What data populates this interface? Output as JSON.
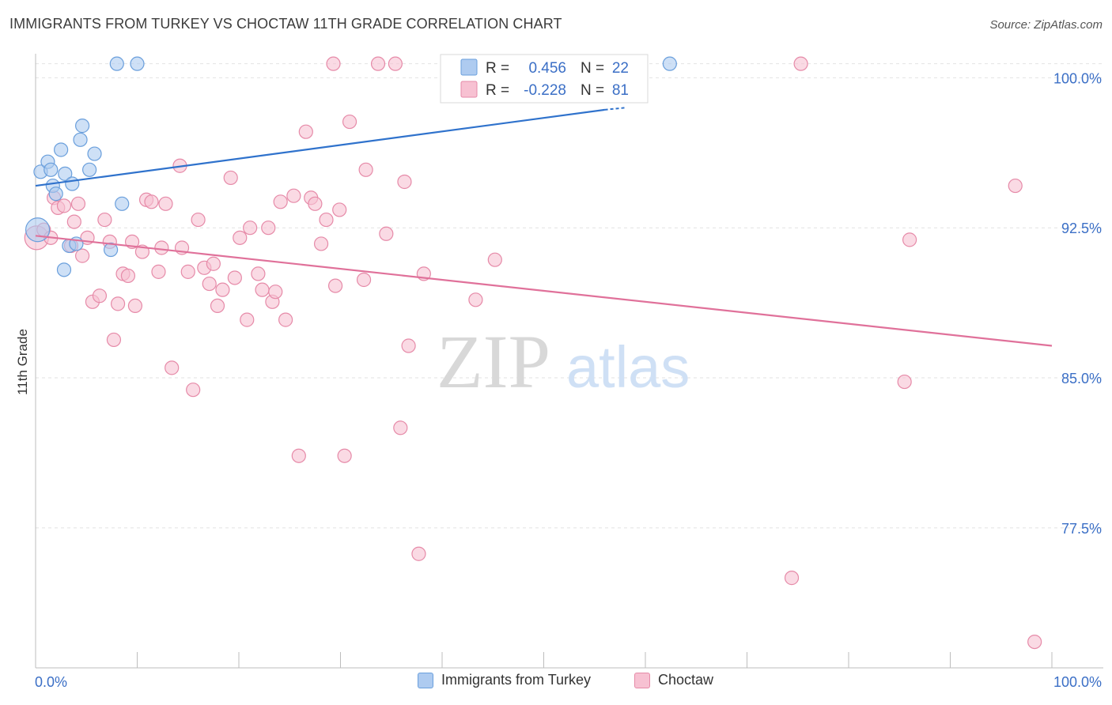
{
  "header": {
    "title": "IMMIGRANTS FROM TURKEY VS CHOCTAW 11TH GRADE CORRELATION CHART",
    "source": "Source: ZipAtlas.com"
  },
  "watermark": {
    "zip": "ZIP",
    "atlas": "atlas"
  },
  "colors": {
    "turkey_fill": "#aecbf0",
    "turkey_stroke": "#6a9fdc",
    "turkey_line": "#2f72cc",
    "choctaw_fill": "#f7c1d2",
    "choctaw_stroke": "#e68aa8",
    "choctaw_line": "#e0719a",
    "axis_text": "#3b6fc6",
    "grid": "#e2e2e2"
  },
  "legend_box": {
    "rows": [
      {
        "r_label": "R =",
        "r_value": "0.456",
        "n_label": "N =",
        "n_value": "22"
      },
      {
        "r_label": "R =",
        "r_value": "-0.228",
        "n_label": "N =",
        "n_value": "81"
      }
    ]
  },
  "chart_data": {
    "type": "scatter",
    "title": "IMMIGRANTS FROM TURKEY VS CHOCTAW 11TH GRADE CORRELATION CHART",
    "xlabel": "",
    "ylabel": "11th Grade",
    "xlim": [
      0,
      100
    ],
    "ylim": [
      70.5,
      101.2
    ],
    "x_tick_labels": [
      "0.0%",
      "100.0%"
    ],
    "y_ticks": [
      100.0,
      92.5,
      85.0,
      77.5
    ],
    "y_tick_labels": [
      "100.0%",
      "92.5%",
      "85.0%",
      "77.5%"
    ],
    "grid": true,
    "legend_position": "bottom",
    "series": [
      {
        "name": "Immigrants from Turkey",
        "r": 0.456,
        "n": 22,
        "trend": {
          "x": [
            0,
            56
          ],
          "y": [
            94.6,
            98.4
          ]
        },
        "trend_dashed": {
          "x": [
            56,
            58
          ],
          "y": [
            98.4,
            98.5
          ]
        },
        "points": [
          {
            "x": 0.2,
            "y": 92.4,
            "s": "big"
          },
          {
            "x": 0.5,
            "y": 95.3
          },
          {
            "x": 1.2,
            "y": 95.8
          },
          {
            "x": 1.5,
            "y": 95.4
          },
          {
            "x": 1.7,
            "y": 94.6
          },
          {
            "x": 2.0,
            "y": 94.2
          },
          {
            "x": 2.5,
            "y": 96.4
          },
          {
            "x": 2.8,
            "y": 90.4
          },
          {
            "x": 2.9,
            "y": 95.2
          },
          {
            "x": 3.3,
            "y": 91.6
          },
          {
            "x": 3.6,
            "y": 94.7
          },
          {
            "x": 4.0,
            "y": 91.7
          },
          {
            "x": 4.4,
            "y": 96.9
          },
          {
            "x": 4.6,
            "y": 97.6
          },
          {
            "x": 5.3,
            "y": 95.4
          },
          {
            "x": 5.8,
            "y": 96.2
          },
          {
            "x": 7.4,
            "y": 91.4
          },
          {
            "x": 8.0,
            "y": 100.7
          },
          {
            "x": 8.5,
            "y": 93.7
          },
          {
            "x": 10.0,
            "y": 100.7
          },
          {
            "x": 62.4,
            "y": 100.7
          }
        ]
      },
      {
        "name": "Choctaw",
        "r": -0.228,
        "n": 81,
        "trend": {
          "x": [
            0,
            100
          ],
          "y": [
            92.1,
            86.6
          ]
        },
        "points": [
          {
            "x": 0.1,
            "y": 92.0,
            "s": "big"
          },
          {
            "x": 0.8,
            "y": 92.4
          },
          {
            "x": 1.5,
            "y": 92.0
          },
          {
            "x": 1.8,
            "y": 94.0
          },
          {
            "x": 2.2,
            "y": 93.5
          },
          {
            "x": 2.8,
            "y": 93.6
          },
          {
            "x": 3.5,
            "y": 91.6
          },
          {
            "x": 3.8,
            "y": 92.8
          },
          {
            "x": 4.2,
            "y": 93.7
          },
          {
            "x": 4.6,
            "y": 91.1
          },
          {
            "x": 5.1,
            "y": 92.0
          },
          {
            "x": 5.6,
            "y": 88.8
          },
          {
            "x": 6.3,
            "y": 89.1
          },
          {
            "x": 6.8,
            "y": 92.9
          },
          {
            "x": 7.3,
            "y": 91.8
          },
          {
            "x": 7.7,
            "y": 86.9
          },
          {
            "x": 8.1,
            "y": 88.7
          },
          {
            "x": 8.6,
            "y": 90.2
          },
          {
            "x": 9.1,
            "y": 90.1
          },
          {
            "x": 9.5,
            "y": 91.8
          },
          {
            "x": 9.8,
            "y": 88.6
          },
          {
            "x": 10.5,
            "y": 91.3
          },
          {
            "x": 10.9,
            "y": 93.9
          },
          {
            "x": 11.4,
            "y": 93.8
          },
          {
            "x": 12.1,
            "y": 90.3
          },
          {
            "x": 12.4,
            "y": 91.5
          },
          {
            "x": 12.8,
            "y": 93.7
          },
          {
            "x": 13.4,
            "y": 85.5
          },
          {
            "x": 14.2,
            "y": 95.6
          },
          {
            "x": 14.4,
            "y": 91.5
          },
          {
            "x": 15.0,
            "y": 90.3
          },
          {
            "x": 15.5,
            "y": 84.4
          },
          {
            "x": 16.0,
            "y": 92.9
          },
          {
            "x": 16.6,
            "y": 90.5
          },
          {
            "x": 17.1,
            "y": 89.7
          },
          {
            "x": 17.5,
            "y": 90.7
          },
          {
            "x": 17.9,
            "y": 88.6
          },
          {
            "x": 18.4,
            "y": 89.4
          },
          {
            "x": 19.2,
            "y": 95.0
          },
          {
            "x": 19.6,
            "y": 90.0
          },
          {
            "x": 20.1,
            "y": 92.0
          },
          {
            "x": 20.8,
            "y": 87.9
          },
          {
            "x": 21.1,
            "y": 92.5
          },
          {
            "x": 21.9,
            "y": 90.2
          },
          {
            "x": 22.3,
            "y": 89.4
          },
          {
            "x": 22.9,
            "y": 92.5
          },
          {
            "x": 23.3,
            "y": 88.8
          },
          {
            "x": 23.6,
            "y": 89.3
          },
          {
            "x": 24.1,
            "y": 93.8
          },
          {
            "x": 24.6,
            "y": 87.9
          },
          {
            "x": 25.4,
            "y": 94.1
          },
          {
            "x": 25.9,
            "y": 81.1
          },
          {
            "x": 26.6,
            "y": 97.3
          },
          {
            "x": 27.1,
            "y": 94.0
          },
          {
            "x": 27.5,
            "y": 93.7
          },
          {
            "x": 28.1,
            "y": 91.7
          },
          {
            "x": 28.6,
            "y": 92.9
          },
          {
            "x": 29.3,
            "y": 100.7
          },
          {
            "x": 29.5,
            "y": 89.6
          },
          {
            "x": 29.9,
            "y": 93.4
          },
          {
            "x": 30.4,
            "y": 81.1
          },
          {
            "x": 30.9,
            "y": 97.8
          },
          {
            "x": 32.3,
            "y": 89.9
          },
          {
            "x": 32.5,
            "y": 95.4
          },
          {
            "x": 33.7,
            "y": 100.7
          },
          {
            "x": 34.5,
            "y": 92.2
          },
          {
            "x": 35.4,
            "y": 100.7
          },
          {
            "x": 35.9,
            "y": 82.5
          },
          {
            "x": 36.3,
            "y": 94.8
          },
          {
            "x": 36.7,
            "y": 86.6
          },
          {
            "x": 37.7,
            "y": 76.2
          },
          {
            "x": 38.2,
            "y": 90.2
          },
          {
            "x": 43.3,
            "y": 88.9
          },
          {
            "x": 45.2,
            "y": 90.9
          },
          {
            "x": 74.4,
            "y": 75.0
          },
          {
            "x": 75.3,
            "y": 100.7
          },
          {
            "x": 85.5,
            "y": 84.8
          },
          {
            "x": 86.0,
            "y": 91.9
          },
          {
            "x": 96.4,
            "y": 94.6
          },
          {
            "x": 98.3,
            "y": 71.8
          }
        ]
      }
    ]
  },
  "bottom_legend": {
    "items": [
      {
        "label": "Immigrants from Turkey"
      },
      {
        "label": "Choctaw"
      }
    ]
  }
}
